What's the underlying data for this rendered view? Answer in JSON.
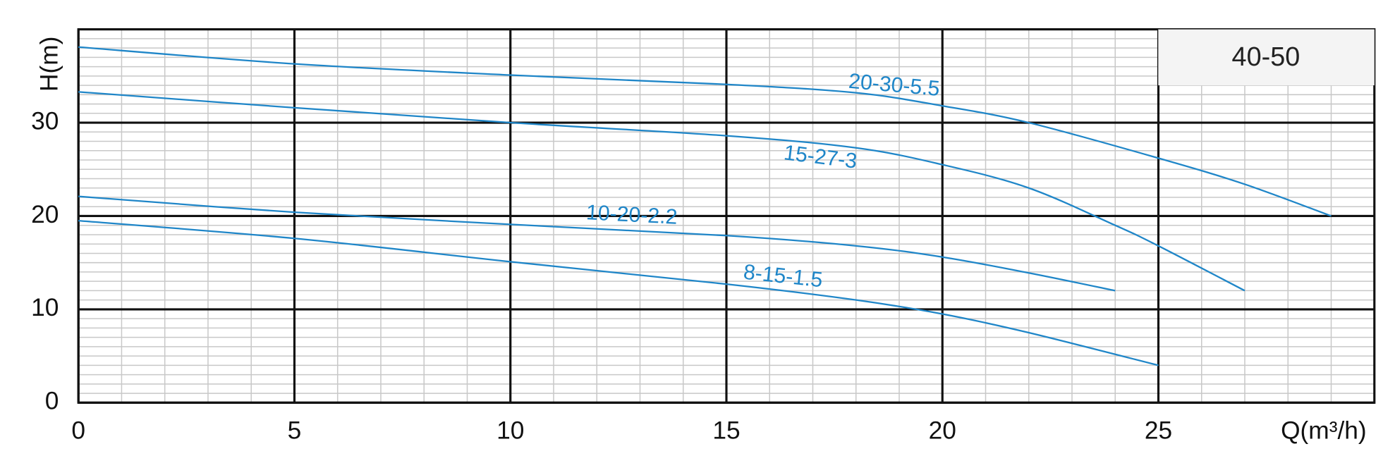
{
  "chart_data": {
    "type": "line",
    "title": "40-50",
    "xlabel": "Q(m³/h)",
    "ylabel": "H(m)",
    "xlim": [
      0,
      30
    ],
    "ylim": [
      0,
      40
    ],
    "xticks": [
      0,
      5,
      10,
      15,
      20,
      25
    ],
    "yticks": [
      0,
      10,
      20,
      30
    ],
    "grid": true,
    "minor_xstep": 1,
    "minor_ystep": 1,
    "series": [
      {
        "name": "20-30-5.5",
        "color": "#1f86c8",
        "x": [
          0,
          5,
          10,
          15,
          18,
          20,
          22,
          25,
          27,
          29
        ],
        "values": [
          38.1,
          36.3,
          35.1,
          34.1,
          33.2,
          31.8,
          30,
          26.2,
          23.4,
          20
        ]
      },
      {
        "name": "15-27-3",
        "color": "#1f86c8",
        "x": [
          0,
          5,
          10,
          15,
          18,
          20,
          22,
          24,
          25,
          27
        ],
        "values": [
          33.3,
          31.6,
          30,
          28.6,
          27.3,
          25.5,
          23,
          19,
          16.8,
          12
        ]
      },
      {
        "name": "10-20-2.2",
        "color": "#1f86c8",
        "x": [
          0,
          5,
          10,
          15,
          18,
          20,
          22,
          24
        ],
        "values": [
          22.1,
          20.4,
          19.1,
          17.9,
          16.8,
          15.6,
          13.9,
          12
        ]
      },
      {
        "name": "8-15-1.5",
        "color": "#1f86c8",
        "x": [
          0,
          5,
          10,
          15,
          18,
          20,
          22,
          25
        ],
        "values": [
          19.5,
          17.6,
          15.1,
          12.7,
          11,
          9.5,
          7.5,
          4
        ]
      }
    ]
  }
}
